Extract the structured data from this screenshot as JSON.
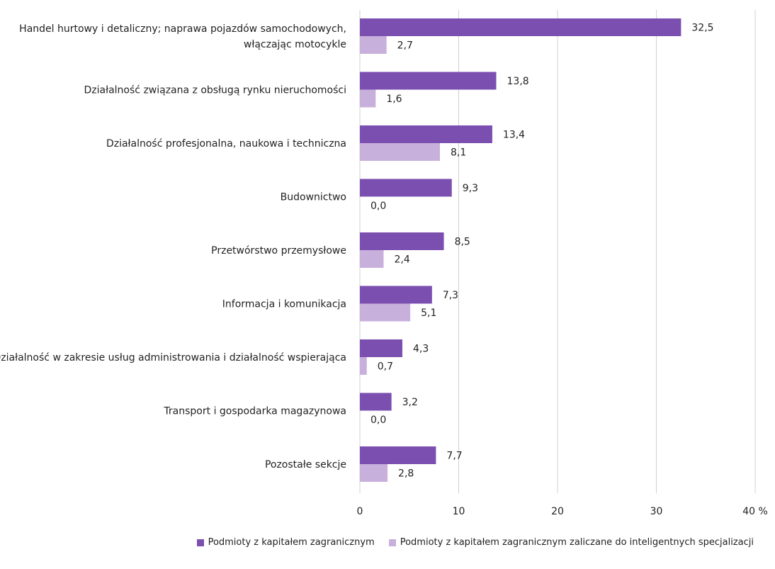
{
  "chart_data": {
    "type": "bar",
    "orientation": "horizontal",
    "categories": [
      [
        "Handel hurtowy i detaliczny; naprawa pojazdów samochodowych,",
        "włączając motocykle"
      ],
      [
        "Działalność związana z obsługą rynku nieruchomości"
      ],
      [
        "Działalność profesjonalna, naukowa i techniczna"
      ],
      [
        "Budownictwo"
      ],
      [
        "Przetwórstwo przemysłowe"
      ],
      [
        "Informacja i komunikacja"
      ],
      [
        "Działalność w zakresie usług administrowania i działalność wspierająca"
      ],
      [
        "Transport i gospodarka magazynowa"
      ],
      [
        "Pozostałe sekcje"
      ]
    ],
    "series": [
      {
        "name": "Podmioty z kapitałem zagranicznym",
        "color": "#7b4fb0",
        "values": [
          32.5,
          13.8,
          13.4,
          9.3,
          8.5,
          7.3,
          4.3,
          3.2,
          7.7
        ],
        "labels": [
          "32,5",
          "13,8",
          "13,4",
          "9,3",
          "8,5",
          "7,3",
          "4,3",
          "3,2",
          "7,7"
        ]
      },
      {
        "name": "Podmioty z kapitałem zagranicznym zaliczane do inteligentnych specjalizacji",
        "color": "#c8b0dc",
        "values": [
          2.7,
          1.6,
          8.1,
          0.0,
          2.4,
          5.1,
          0.7,
          0.0,
          2.8
        ],
        "labels": [
          "2,7",
          "1,6",
          "8,1",
          "0,0",
          "2,4",
          "5,1",
          "0,7",
          "0,0",
          "2,8"
        ]
      }
    ],
    "xlim": [
      0,
      40
    ],
    "xticks": [
      {
        "value": 0,
        "label": "0"
      },
      {
        "value": 10,
        "label": "10"
      },
      {
        "value": 20,
        "label": "20"
      },
      {
        "value": 30,
        "label": "30"
      },
      {
        "value": 40,
        "label": "40 %"
      }
    ],
    "grid": true,
    "legend_position": "bottom"
  }
}
